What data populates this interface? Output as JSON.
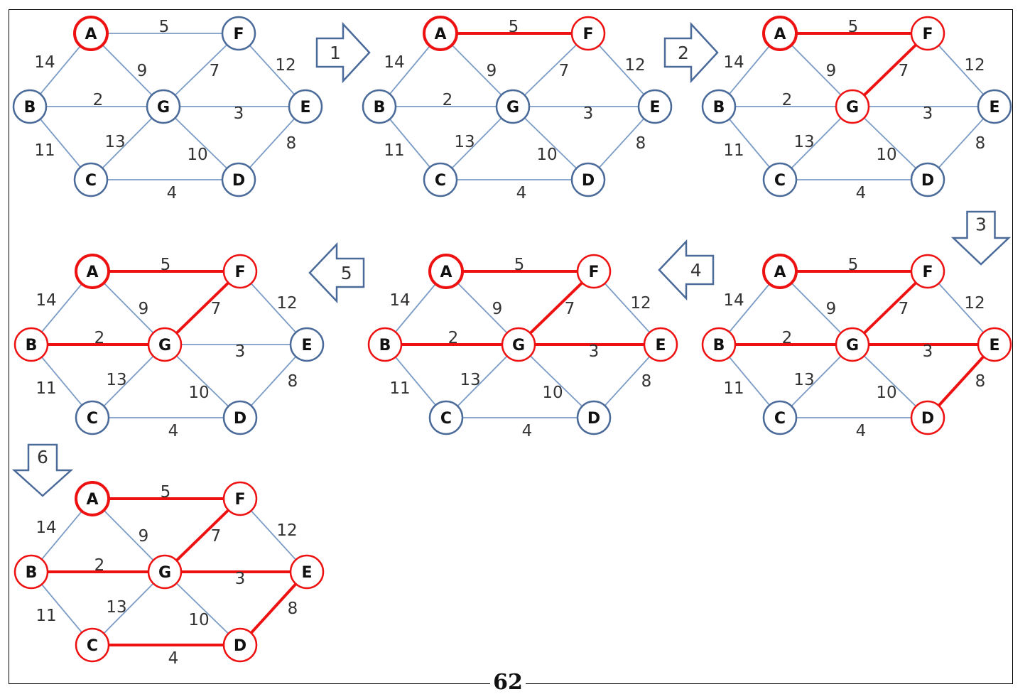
{
  "colors": {
    "selected": "#ee1111",
    "unselected": "#7b9cc6",
    "node_unselected": "#4a6a9a",
    "text": "#333333"
  },
  "page_number": "62",
  "nodes": [
    "A",
    "F",
    "B",
    "G",
    "E",
    "C",
    "D"
  ],
  "edges": [
    {
      "id": "AF",
      "from": "A",
      "to": "F",
      "weight": "5"
    },
    {
      "id": "AB",
      "from": "A",
      "to": "B",
      "weight": "14"
    },
    {
      "id": "AG",
      "from": "A",
      "to": "G",
      "weight": "9"
    },
    {
      "id": "FG",
      "from": "F",
      "to": "G",
      "weight": "7"
    },
    {
      "id": "FE",
      "from": "F",
      "to": "E",
      "weight": "12"
    },
    {
      "id": "BG",
      "from": "B",
      "to": "G",
      "weight": "2"
    },
    {
      "id": "GE",
      "from": "G",
      "to": "E",
      "weight": "3"
    },
    {
      "id": "BC",
      "from": "B",
      "to": "C",
      "weight": "11"
    },
    {
      "id": "GC",
      "from": "G",
      "to": "C",
      "weight": "13"
    },
    {
      "id": "GD",
      "from": "G",
      "to": "D",
      "weight": "10"
    },
    {
      "id": "ED",
      "from": "E",
      "to": "D",
      "weight": "8"
    },
    {
      "id": "CD",
      "from": "C",
      "to": "D",
      "weight": "4"
    }
  ],
  "panels": [
    {
      "nodes": [
        "A"
      ],
      "edges": []
    },
    {
      "nodes": [
        "A",
        "F"
      ],
      "edges": [
        "AF"
      ]
    },
    {
      "nodes": [
        "A",
        "F",
        "G"
      ],
      "edges": [
        "AF",
        "FG"
      ]
    },
    {
      "nodes": [
        "A",
        "F",
        "G",
        "B"
      ],
      "edges": [
        "AF",
        "FG",
        "BG"
      ]
    },
    {
      "nodes": [
        "A",
        "F",
        "G",
        "B",
        "E"
      ],
      "edges": [
        "AF",
        "FG",
        "BG",
        "GE"
      ]
    },
    {
      "nodes": [
        "A",
        "F",
        "G",
        "B",
        "E",
        "D"
      ],
      "edges": [
        "AF",
        "FG",
        "BG",
        "GE",
        "ED"
      ]
    },
    {
      "nodes": [
        "A",
        "F",
        "G",
        "B",
        "E",
        "D",
        "C"
      ],
      "edges": [
        "AF",
        "FG",
        "BG",
        "GE",
        "ED",
        "CD"
      ]
    }
  ],
  "steps": [
    {
      "label": "1",
      "direction": "right"
    },
    {
      "label": "2",
      "direction": "right"
    },
    {
      "label": "3",
      "direction": "down"
    },
    {
      "label": "4",
      "direction": "left"
    },
    {
      "label": "5",
      "direction": "left"
    },
    {
      "label": "6",
      "direction": "down"
    }
  ]
}
